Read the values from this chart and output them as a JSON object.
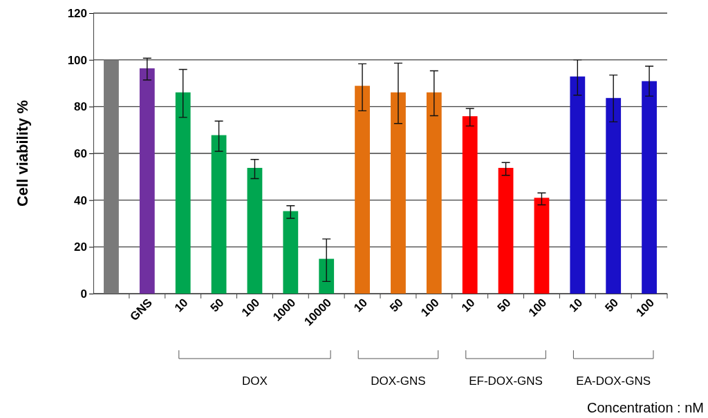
{
  "chart_data": {
    "type": "bar",
    "ylabel": "Cell viability  %",
    "categories": [
      null,
      "GNS",
      "10",
      "50",
      "100",
      "1000",
      "10000",
      "10",
      "50",
      "100",
      "10",
      "50",
      "100",
      "10",
      "50",
      "100"
    ],
    "values": [
      100,
      96.4,
      86.1,
      67.8,
      53.8,
      35.3,
      14.9,
      88.9,
      86.1,
      86.1,
      75.9,
      53.8,
      41.0,
      92.9,
      83.7,
      90.9
    ],
    "errors": [
      null,
      [
        91.4,
        100.7
      ],
      [
        75.4,
        95.9
      ],
      [
        60.9,
        73.8
      ],
      [
        49.2,
        57.4
      ],
      [
        32.2,
        37.6
      ],
      [
        5.2,
        23.4
      ],
      [
        78.2,
        98.3
      ],
      [
        72.8,
        98.6
      ],
      [
        76.1,
        95.3
      ],
      [
        71.7,
        79.2
      ],
      [
        50.6,
        56.1
      ],
      [
        38.0,
        43.1
      ],
      [
        84.9,
        100.0
      ],
      [
        73.5,
        93.5
      ],
      [
        84.5,
        97.3
      ]
    ],
    "colors": [
      "#7a7a7a",
      "#7030a0",
      "#00a650",
      "#00a650",
      "#00a650",
      "#00a650",
      "#00a650",
      "#e3700f",
      "#e3700f",
      "#e3700f",
      "#ff0000",
      "#ff0000",
      "#ff0000",
      "#1a10c8",
      "#1a10c8",
      "#1a10c8"
    ],
    "annotations": [
      "DOX",
      "DOX-GNS",
      "EF-DOX-GNS",
      "EA-DOX-GNS",
      "Concentration : nM"
    ],
    "ylim": [
      0,
      120
    ],
    "yticks": [
      0,
      20,
      40,
      60,
      80,
      100,
      120
    ],
    "grid": "y"
  }
}
